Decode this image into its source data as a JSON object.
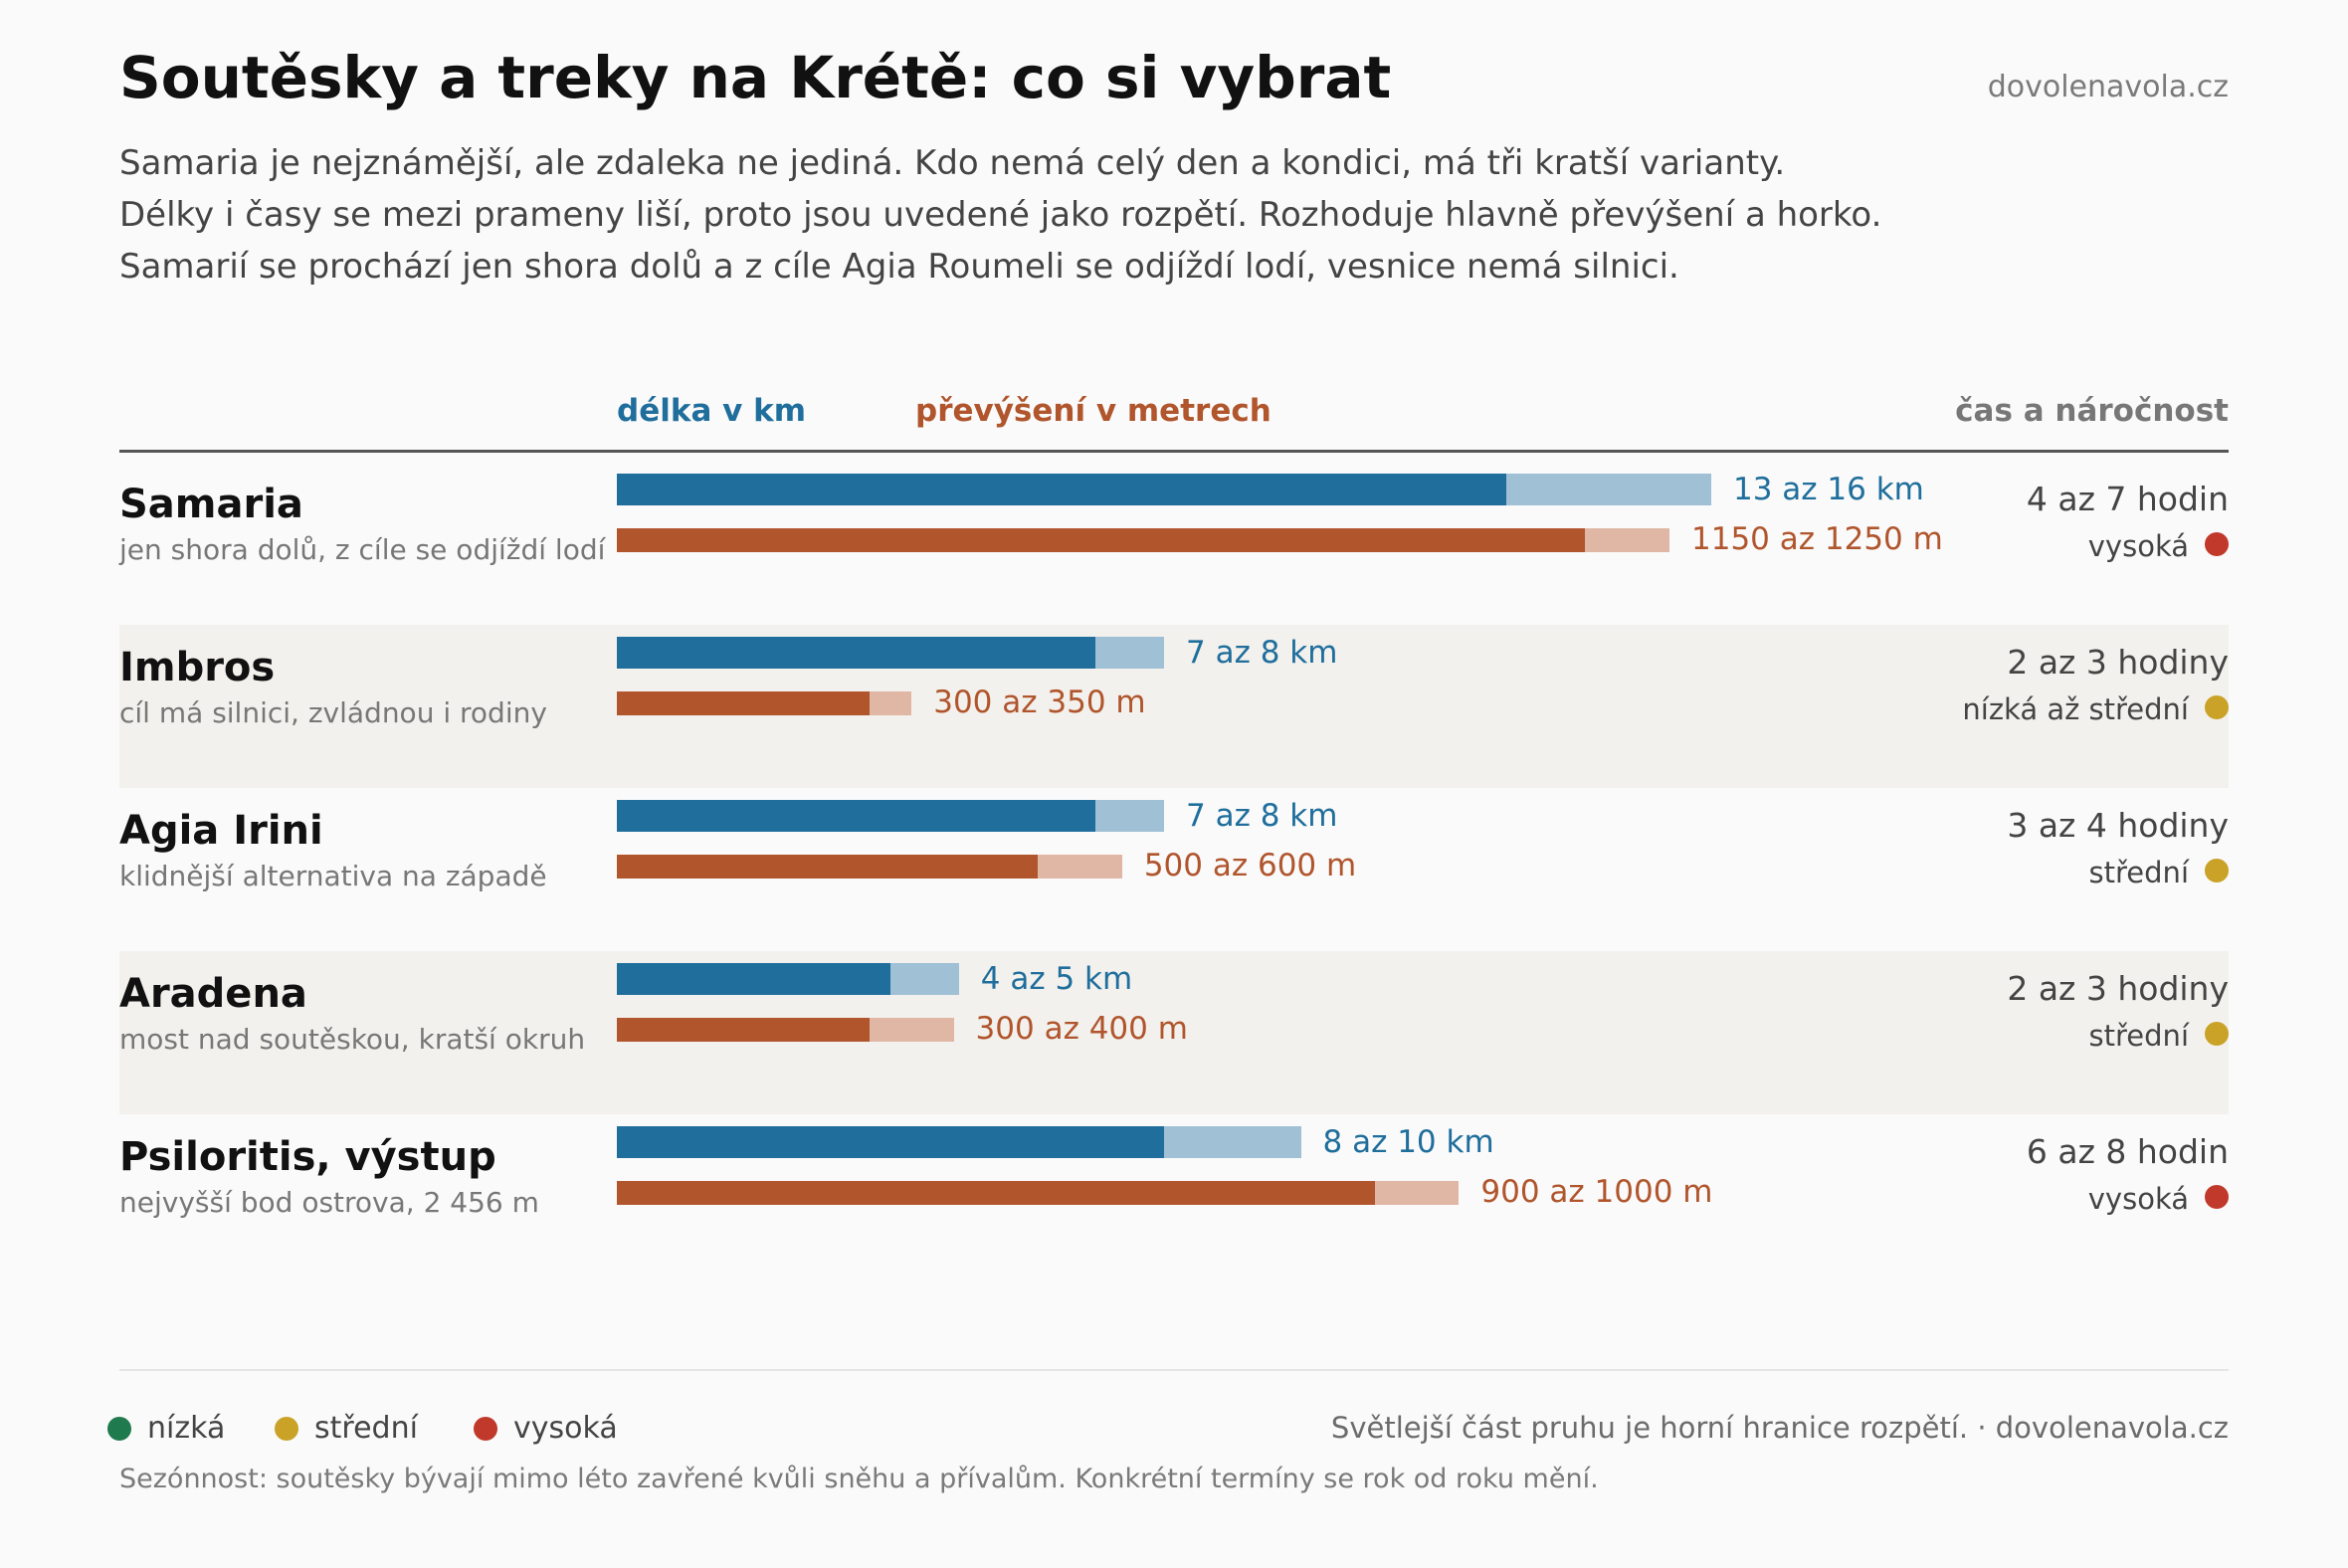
{
  "header": {
    "title": "Soutěsky a treky na Krétě: co si vybrat",
    "brand": "dovolenavola.cz",
    "subtitle_lines": [
      "Samaria je nejznámější, ale zdaleka ne jediná. Kdo nemá celý den a kondici, má tři kratší varianty.",
      "Délky i časy se mezi prameny liší, proto jsou uvedené jako rozpětí. Rozhoduje hlavně převýšení a horko.",
      "Samarií se prochází jen shora dolů a z cíle Agia Roumeli se odjíždí lodí, vesnice nemá silnici."
    ]
  },
  "columns": {
    "length": "délka v km",
    "elevation": "převýšení v metrech",
    "time": "čas a náročnost"
  },
  "colors": {
    "length_dark": "#1f6e9c",
    "length_light": "#9fc0d5",
    "elev_dark": "#b0552c",
    "elev_light": "#e0b7a5",
    "length_text": "#1f6e9c",
    "elev_text": "#b0552c",
    "nizka": "#1f7a4d",
    "stredni": "#c9a227",
    "vysoka": "#c0392b",
    "row_shade": "#f3f1ed"
  },
  "chart_data": {
    "type": "bar",
    "categories": [
      "Samaria",
      "Imbros",
      "Agia Irini",
      "Aradena",
      "Psiloritis, výstup"
    ],
    "series": [
      {
        "name": "délka v km",
        "unit": "km",
        "ranges": [
          [
            13,
            16
          ],
          [
            7,
            8
          ],
          [
            7,
            8
          ],
          [
            4,
            5
          ],
          [
            8,
            10
          ]
        ]
      },
      {
        "name": "převýšení v metrech",
        "unit": "m",
        "ranges": [
          [
            1150,
            1250
          ],
          [
            300,
            350
          ],
          [
            500,
            600
          ],
          [
            300,
            400
          ],
          [
            900,
            1000
          ]
        ]
      }
    ],
    "rows": [
      {
        "name": "Samaria",
        "note": "jen shora dolů, z cíle se odjíždí lodí",
        "length": [
          13,
          16
        ],
        "length_label": "13 az 16 km",
        "elev": [
          1150,
          1250
        ],
        "elev_label": "1150 az 1250 m",
        "time": "4 az 7 hodin",
        "difficulty": "vysoká",
        "level": "vysoka"
      },
      {
        "name": "Imbros",
        "note": "cíl má silnici, zvládnou i rodiny",
        "length": [
          7,
          8
        ],
        "length_label": "7 az 8 km",
        "elev": [
          300,
          350
        ],
        "elev_label": "300 az 350 m",
        "time": "2 az 3 hodiny",
        "difficulty": "nízká až střední",
        "level": "stredni"
      },
      {
        "name": "Agia Irini",
        "note": "klidnější alternativa na západě",
        "length": [
          7,
          8
        ],
        "length_label": "7 az 8 km",
        "elev": [
          500,
          600
        ],
        "elev_label": "500 az 600 m",
        "time": "3 az 4 hodiny",
        "difficulty": "střední",
        "level": "stredni"
      },
      {
        "name": "Aradena",
        "note": "most nad soutěskou, kratší okruh",
        "length": [
          4,
          5
        ],
        "length_label": "4 az 5 km",
        "elev": [
          300,
          400
        ],
        "elev_label": "300 az 400 m",
        "time": "2 az 3 hodiny",
        "difficulty": "střední",
        "level": "stredni"
      },
      {
        "name": "Psiloritis, výstup",
        "note": "nejvyšší bod ostrova, 2 456 m",
        "length": [
          8,
          10
        ],
        "length_label": "8 az 10 km",
        "elev": [
          900,
          1000
        ],
        "elev_label": "900 az 1000 m",
        "time": "6 az 8 hodin",
        "difficulty": "vysoká",
        "level": "vysoka"
      }
    ],
    "legend": [
      {
        "label": "nízká",
        "level": "nizka"
      },
      {
        "label": "střední",
        "level": "stredni"
      },
      {
        "label": "vysoká",
        "level": "vysoka"
      }
    ],
    "legend_placement": "bottom-left"
  },
  "footer": {
    "right": "Světlejší část pruhu je horní hranice rozpětí. · dovolenavola.cz",
    "note": "Sezónnost: soutěsky bývají mimo léto zavřené kvůli sněhu a přívalům. Konkrétní termíny se rok od roku mění."
  }
}
